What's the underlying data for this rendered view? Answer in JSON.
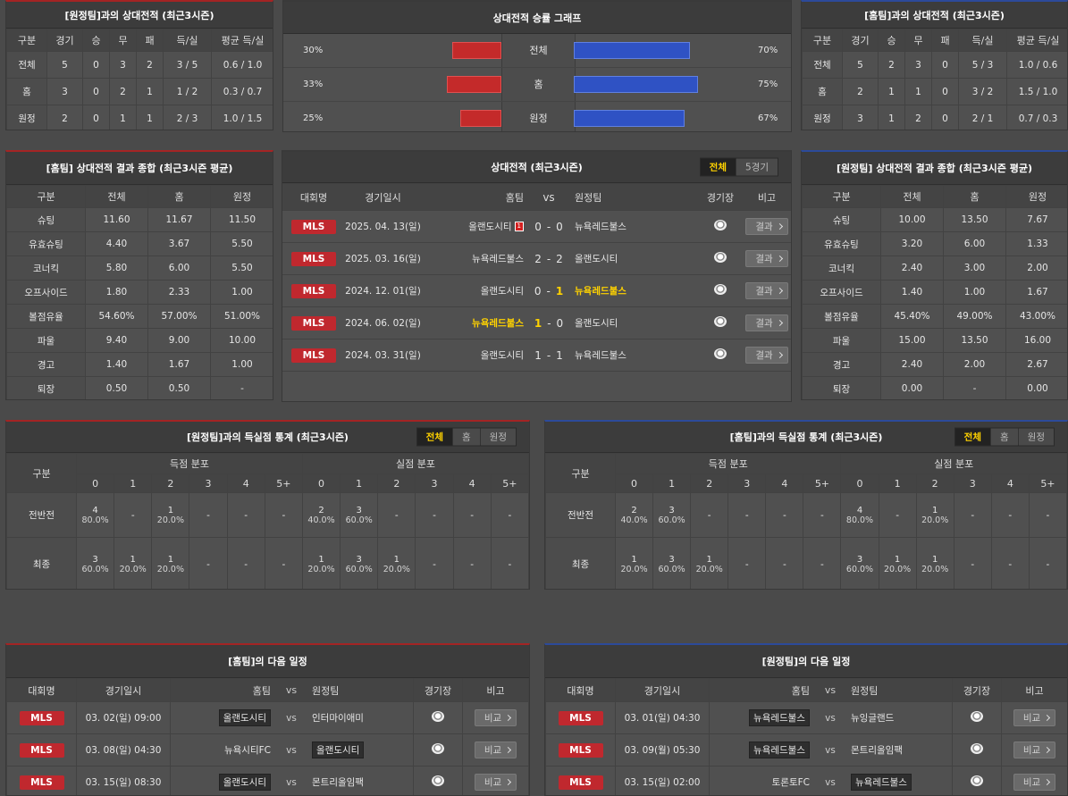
{
  "h2h_vs_away": {
    "title": "[원정팀]과의 상대전적 (최근3시즌)",
    "headers": [
      "구분",
      "경기",
      "승",
      "무",
      "패",
      "득/실",
      "평균 득/실"
    ],
    "rows": [
      [
        "전체",
        "5",
        "0",
        "3",
        "2",
        "3 / 5",
        "0.6 / 1.0"
      ],
      [
        "홈",
        "3",
        "0",
        "2",
        "1",
        "1 / 2",
        "0.3 / 0.7"
      ],
      [
        "원정",
        "2",
        "0",
        "1",
        "1",
        "2 / 3",
        "1.0 / 1.5"
      ]
    ]
  },
  "win_graph": {
    "title": "상대전적 승률 그래프",
    "rows": [
      {
        "label": "전체",
        "left": {
          "value": 30,
          "label": "30%"
        },
        "right": {
          "value": 70,
          "label": "70%"
        }
      },
      {
        "label": "홈",
        "left": {
          "value": 33,
          "label": "33%"
        },
        "right": {
          "value": 75,
          "label": "75%"
        }
      },
      {
        "label": "원정",
        "left": {
          "value": 25,
          "label": "25%"
        },
        "right": {
          "value": 67,
          "label": "67%"
        }
      }
    ]
  },
  "h2h_vs_home": {
    "title": "[홈팀]과의 상대전적 (최근3시즌)",
    "headers": [
      "구분",
      "경기",
      "승",
      "무",
      "패",
      "득/실",
      "평균 득/실"
    ],
    "rows": [
      [
        "전체",
        "5",
        "2",
        "3",
        "0",
        "5 / 3",
        "1.0 / 0.6"
      ],
      [
        "홈",
        "2",
        "1",
        "1",
        "0",
        "3 / 2",
        "1.5 / 1.0"
      ],
      [
        "원정",
        "3",
        "1",
        "2",
        "0",
        "2 / 1",
        "0.7 / 0.3"
      ]
    ]
  },
  "summary_home": {
    "title": "[홈팀] 상대전적 결과 종합 (최근3시즌 평균)",
    "headers": [
      "구분",
      "전체",
      "홈",
      "원정"
    ],
    "rows": [
      [
        "슈팅",
        "11.60",
        "11.67",
        "11.50"
      ],
      [
        "유효슈팅",
        "4.40",
        "3.67",
        "5.50"
      ],
      [
        "코너킥",
        "5.80",
        "6.00",
        "5.50"
      ],
      [
        "오프사이드",
        "1.80",
        "2.33",
        "1.00"
      ],
      [
        "볼점유율",
        "54.60%",
        "57.00%",
        "51.00%"
      ],
      [
        "파울",
        "9.40",
        "9.00",
        "10.00"
      ],
      [
        "경고",
        "1.40",
        "1.67",
        "1.00"
      ],
      [
        "퇴장",
        "0.50",
        "0.50",
        "-"
      ]
    ]
  },
  "h2h_matches": {
    "title": "상대전적 (최근3시즌)",
    "tabs": [
      "전체",
      "5경기"
    ],
    "active_tab": 0,
    "headers": [
      "대회명",
      "경기일시",
      "홈팀",
      "vs",
      "원정팀",
      "경기장",
      "비고"
    ],
    "rows": [
      {
        "league": "MLS",
        "date": "2025. 04. 13(일)",
        "home": "올랜도시티",
        "red_card": "1",
        "score_home": "0",
        "sep": "-",
        "score_away": "0",
        "away": "뉴욕레드불스",
        "button": "결과",
        "winner": null
      },
      {
        "league": "MLS",
        "date": "2025. 03. 16(일)",
        "home": "뉴욕레드불스",
        "score_home": "2",
        "sep": "-",
        "score_away": "2",
        "away": "올랜도시티",
        "button": "결과",
        "winner": null
      },
      {
        "league": "MLS",
        "date": "2024. 12. 01(일)",
        "home": "올랜도시티",
        "score_home": "0",
        "sep": "-",
        "score_away": "1",
        "away": "뉴욕레드불스",
        "button": "결과",
        "winner": "away"
      },
      {
        "league": "MLS",
        "date": "2024. 06. 02(일)",
        "home": "뉴욕레드불스",
        "score_home": "1",
        "sep": "-",
        "score_away": "0",
        "away": "올랜도시티",
        "button": "결과",
        "winner": "home"
      },
      {
        "league": "MLS",
        "date": "2024. 03. 31(일)",
        "home": "올랜도시티",
        "score_home": "1",
        "sep": "-",
        "score_away": "1",
        "away": "뉴욕레드불스",
        "button": "결과",
        "winner": null
      }
    ]
  },
  "summary_away": {
    "title": "[원정팀] 상대전적 결과 종합 (최근3시즌 평균)",
    "headers": [
      "구분",
      "전체",
      "홈",
      "원정"
    ],
    "rows": [
      [
        "슈팅",
        "10.00",
        "13.50",
        "7.67"
      ],
      [
        "유효슈팅",
        "3.20",
        "6.00",
        "1.33"
      ],
      [
        "코너킥",
        "2.40",
        "3.00",
        "2.00"
      ],
      [
        "오프사이드",
        "1.40",
        "1.00",
        "1.67"
      ],
      [
        "볼점유율",
        "45.40%",
        "49.00%",
        "43.00%"
      ],
      [
        "파울",
        "15.00",
        "13.50",
        "16.00"
      ],
      [
        "경고",
        "2.40",
        "2.00",
        "2.67"
      ],
      [
        "퇴장",
        "0.00",
        "-",
        "0.00"
      ]
    ]
  },
  "goals_vs_away": {
    "title": "[원정팀]과의 득실점 통계 (최근3시즌)",
    "tabs": [
      "전체",
      "홈",
      "원정"
    ],
    "active_tab": 0,
    "label_header": "구분",
    "groups": [
      "득점 분포",
      "실점 분포"
    ],
    "buckets": [
      "0",
      "1",
      "2",
      "3",
      "4",
      "5+"
    ],
    "rows": [
      {
        "label": "전반전",
        "scored": [
          {
            "count": "4",
            "pct": "80.0%"
          },
          "-",
          {
            "count": "1",
            "pct": "20.0%"
          },
          "-",
          "-",
          "-"
        ],
        "conceded": [
          {
            "count": "2",
            "pct": "40.0%"
          },
          {
            "count": "3",
            "pct": "60.0%"
          },
          "-",
          "-",
          "-",
          "-"
        ]
      },
      {
        "label": "최종",
        "scored": [
          {
            "count": "3",
            "pct": "60.0%"
          },
          {
            "count": "1",
            "pct": "20.0%"
          },
          {
            "count": "1",
            "pct": "20.0%"
          },
          "-",
          "-",
          "-"
        ],
        "conceded": [
          {
            "count": "1",
            "pct": "20.0%"
          },
          {
            "count": "3",
            "pct": "60.0%"
          },
          {
            "count": "1",
            "pct": "20.0%"
          },
          "-",
          "-",
          "-"
        ]
      }
    ]
  },
  "goals_vs_home": {
    "title": "[홈팀]과의 득실점 통계 (최근3시즌)",
    "tabs": [
      "전체",
      "홈",
      "원정"
    ],
    "active_tab": 0,
    "label_header": "구분",
    "groups": [
      "득점 분포",
      "실점 분포"
    ],
    "buckets": [
      "0",
      "1",
      "2",
      "3",
      "4",
      "5+"
    ],
    "rows": [
      {
        "label": "전반전",
        "scored": [
          {
            "count": "2",
            "pct": "40.0%"
          },
          {
            "count": "3",
            "pct": "60.0%"
          },
          "-",
          "-",
          "-",
          "-"
        ],
        "conceded": [
          {
            "count": "4",
            "pct": "80.0%"
          },
          "-",
          {
            "count": "1",
            "pct": "20.0%"
          },
          "-",
          "-",
          "-"
        ]
      },
      {
        "label": "최종",
        "scored": [
          {
            "count": "1",
            "pct": "20.0%"
          },
          {
            "count": "3",
            "pct": "60.0%"
          },
          {
            "count": "1",
            "pct": "20.0%"
          },
          "-",
          "-",
          "-"
        ],
        "conceded": [
          {
            "count": "3",
            "pct": "60.0%"
          },
          {
            "count": "1",
            "pct": "20.0%"
          },
          {
            "count": "1",
            "pct": "20.0%"
          },
          "-",
          "-",
          "-"
        ]
      }
    ]
  },
  "next_home": {
    "title": "[홈팀]의 다음 일정",
    "headers": [
      "대회명",
      "경기일시",
      "홈팀",
      "vs",
      "원정팀",
      "경기장",
      "비고"
    ],
    "rows": [
      {
        "league": "MLS",
        "date": "03. 02(일) 09:00",
        "home": "올랜도시티",
        "vs": "vs",
        "away": "인터마이애미",
        "boxed": "home",
        "button": "비교"
      },
      {
        "league": "MLS",
        "date": "03. 08(일) 04:30",
        "home": "뉴욕시티FC",
        "vs": "vs",
        "away": "올랜도시티",
        "boxed": "away",
        "button": "비교"
      },
      {
        "league": "MLS",
        "date": "03. 15(일) 08:30",
        "home": "올랜도시티",
        "vs": "vs",
        "away": "몬트리올임팩",
        "boxed": "home",
        "button": "비교"
      }
    ]
  },
  "next_away": {
    "title": "[원정팀]의 다음 일정",
    "headers": [
      "대회명",
      "경기일시",
      "홈팀",
      "vs",
      "원정팀",
      "경기장",
      "비고"
    ],
    "rows": [
      {
        "league": "MLS",
        "date": "03. 01(일) 04:30",
        "home": "뉴욕레드불스",
        "vs": "vs",
        "away": "뉴잉글랜드",
        "boxed": "home",
        "button": "비교"
      },
      {
        "league": "MLS",
        "date": "03. 09(월) 05:30",
        "home": "뉴욕레드불스",
        "vs": "vs",
        "away": "몬트리올임팩",
        "boxed": "home",
        "button": "비교"
      },
      {
        "league": "MLS",
        "date": "03. 15(일) 02:00",
        "home": "토론토FC",
        "vs": "vs",
        "away": "뉴욕레드불스",
        "boxed": "away",
        "button": "비교"
      }
    ]
  }
}
